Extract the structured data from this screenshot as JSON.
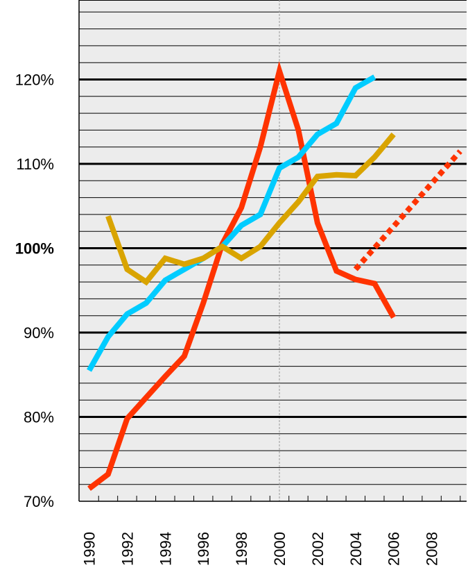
{
  "chart_data": {
    "type": "line",
    "x_range": [
      1989.5,
      2009.5
    ],
    "ylim": [
      70,
      120
    ],
    "y_unit": "%",
    "grid": true,
    "legend": "none",
    "plot_background": "#ececec",
    "y_ticks": [
      {
        "value": 70,
        "label": "70%",
        "bold": false
      },
      {
        "value": 80,
        "label": "80%",
        "bold": false
      },
      {
        "value": 90,
        "label": "90%",
        "bold": false
      },
      {
        "value": 100,
        "label": "100%",
        "bold": true
      },
      {
        "value": 110,
        "label": "110%",
        "bold": false
      },
      {
        "value": 120,
        "label": "120%",
        "bold": false
      }
    ],
    "x_ticks": [
      {
        "value": 1990,
        "label": "1990"
      },
      {
        "value": 1992,
        "label": "1992"
      },
      {
        "value": 1994,
        "label": "1994"
      },
      {
        "value": 1996,
        "label": "1996"
      },
      {
        "value": 1998,
        "label": "1998"
      },
      {
        "value": 2000,
        "label": "2000"
      },
      {
        "value": 2002,
        "label": "2002"
      },
      {
        "value": 2004,
        "label": "2004"
      },
      {
        "value": 2006,
        "label": "2006"
      },
      {
        "value": 2008,
        "label": "2008"
      }
    ],
    "reference_line_x": 2000,
    "series": [
      {
        "color": "#ff3300",
        "style": "solid",
        "points": [
          [
            1990,
            71.5
          ],
          [
            1991,
            73.2
          ],
          [
            1992,
            79.8
          ],
          [
            1993,
            82.3
          ],
          [
            1994,
            84.8
          ],
          [
            1995,
            87.2
          ],
          [
            1996,
            93.5
          ],
          [
            1997,
            100.5
          ],
          [
            1998,
            104.8
          ],
          [
            1999,
            112
          ],
          [
            2000,
            121
          ],
          [
            2001,
            114
          ],
          [
            2002,
            103
          ],
          [
            2003,
            97.3
          ],
          [
            2004,
            96.3
          ],
          [
            2005,
            95.8
          ],
          [
            2006,
            91.8
          ]
        ]
      },
      {
        "color": "#ff3300",
        "style": "dotted",
        "points": [
          [
            2004,
            97.5
          ],
          [
            2009.5,
            111.5
          ]
        ]
      },
      {
        "color": "#00ccff",
        "style": "solid",
        "points": [
          [
            1990,
            85.5
          ],
          [
            1991,
            89.5
          ],
          [
            1992,
            92.2
          ],
          [
            1993,
            93.5
          ],
          [
            1994,
            96.2
          ],
          [
            1995,
            97.5
          ],
          [
            1996,
            98.8
          ],
          [
            1997,
            100.2
          ],
          [
            1998,
            102.7
          ],
          [
            1999,
            104
          ],
          [
            2000,
            109.5
          ],
          [
            2001,
            110.8
          ],
          [
            2002,
            113.5
          ],
          [
            2003,
            114.8
          ],
          [
            2004,
            119
          ],
          [
            2005,
            120.3
          ]
        ]
      },
      {
        "color": "#d9a400",
        "style": "solid",
        "points": [
          [
            1991,
            103.8
          ],
          [
            1992,
            97.5
          ],
          [
            1993,
            96
          ],
          [
            1994,
            98.8
          ],
          [
            1995,
            98.1
          ],
          [
            1996,
            98.8
          ],
          [
            1997,
            100.2
          ],
          [
            1998,
            98.8
          ],
          [
            1999,
            100.2
          ],
          [
            2000,
            103
          ],
          [
            2001,
            105.5
          ],
          [
            2002,
            108.5
          ],
          [
            2003,
            108.7
          ],
          [
            2004,
            108.6
          ],
          [
            2005,
            110.8
          ],
          [
            2006,
            113.5
          ]
        ]
      }
    ]
  }
}
